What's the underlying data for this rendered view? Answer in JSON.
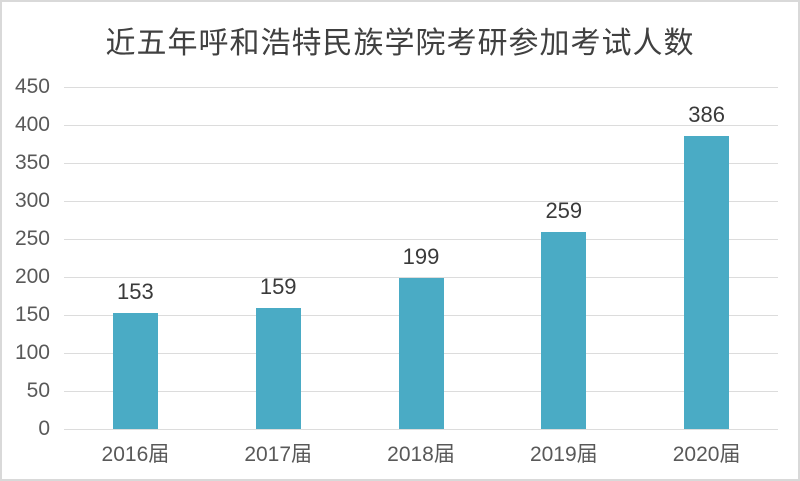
{
  "chart_data": {
    "type": "bar",
    "title": "近五年呼和浩特民族学院考研参加考试人数",
    "categories": [
      "2016届",
      "2017届",
      "2018届",
      "2019届",
      "2020届"
    ],
    "values": [
      153,
      159,
      199,
      259,
      386
    ],
    "yticks": [
      0,
      50,
      100,
      150,
      200,
      250,
      300,
      350,
      400,
      450
    ],
    "ylim": [
      0,
      450
    ],
    "xlabel": "",
    "ylabel": "",
    "grid": true,
    "legend": "none",
    "data_labels": true,
    "colors": {
      "bar": "#4aabc5",
      "gridline": "#dcdcdc",
      "axis_label": "#595959",
      "data_label": "#3a3a3a",
      "title": "#404040",
      "frame_border": "#d9d9d9",
      "background": "#ffffff"
    }
  }
}
